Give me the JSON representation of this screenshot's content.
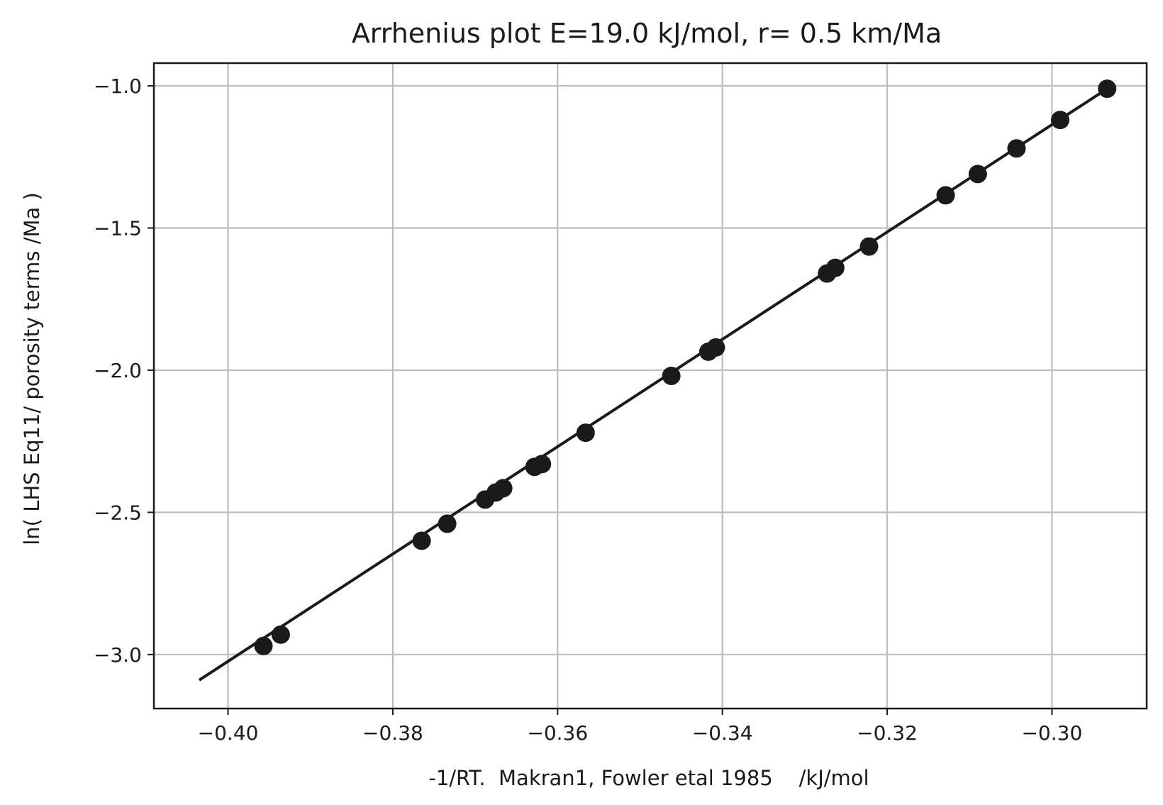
{
  "chart_data": {
    "type": "scatter",
    "title": "Arrhenius plot E=19.0 kJ/mol, r= 0.5 km/Ma",
    "xlabel": "-1/RT.  Makran1, Fowler etal 1985    /kJ/mol",
    "ylabel": "ln( LHS Eq11/ porosity terms /Ma )",
    "xlim": [
      -0.409,
      -0.2885
    ],
    "ylim": [
      -3.19,
      -0.92
    ],
    "xticks": [
      -0.4,
      -0.38,
      -0.36,
      -0.34,
      -0.32,
      -0.3
    ],
    "xtick_labels": [
      "−0.40",
      "−0.38",
      "−0.36",
      "−0.34",
      "−0.32",
      "−0.30"
    ],
    "yticks": [
      -1.0,
      -1.5,
      -2.0,
      -2.5,
      -3.0
    ],
    "ytick_labels": [
      "−1.0",
      "−1.5",
      "−2.0",
      "−2.5",
      "−3.0"
    ],
    "grid": true,
    "colors": {
      "points": "#1a1a1a",
      "line": "#1a1a1a",
      "grid": "#bdbdbd",
      "axes": "#1a1a1a"
    },
    "points": [
      {
        "x": -0.3957,
        "y": -2.97
      },
      {
        "x": -0.3936,
        "y": -2.93
      },
      {
        "x": -0.3765,
        "y": -2.6
      },
      {
        "x": -0.3734,
        "y": -2.54
      },
      {
        "x": -0.3688,
        "y": -2.455
      },
      {
        "x": -0.3675,
        "y": -2.43
      },
      {
        "x": -0.3666,
        "y": -2.415
      },
      {
        "x": -0.3628,
        "y": -2.34
      },
      {
        "x": -0.3619,
        "y": -2.33
      },
      {
        "x": -0.3566,
        "y": -2.22
      },
      {
        "x": -0.3462,
        "y": -2.02
      },
      {
        "x": -0.3417,
        "y": -1.935
      },
      {
        "x": -0.3408,
        "y": -1.92
      },
      {
        "x": -0.3273,
        "y": -1.66
      },
      {
        "x": -0.3263,
        "y": -1.64
      },
      {
        "x": -0.3222,
        "y": -1.565
      },
      {
        "x": -0.3129,
        "y": -1.385
      },
      {
        "x": -0.309,
        "y": -1.31
      },
      {
        "x": -0.3043,
        "y": -1.22
      },
      {
        "x": -0.299,
        "y": -1.12
      },
      {
        "x": -0.2933,
        "y": -1.01
      }
    ],
    "fit_line": {
      "x": [
        -0.4035,
        -0.2933
      ],
      "y": [
        -3.09,
        -1.01
      ]
    }
  }
}
